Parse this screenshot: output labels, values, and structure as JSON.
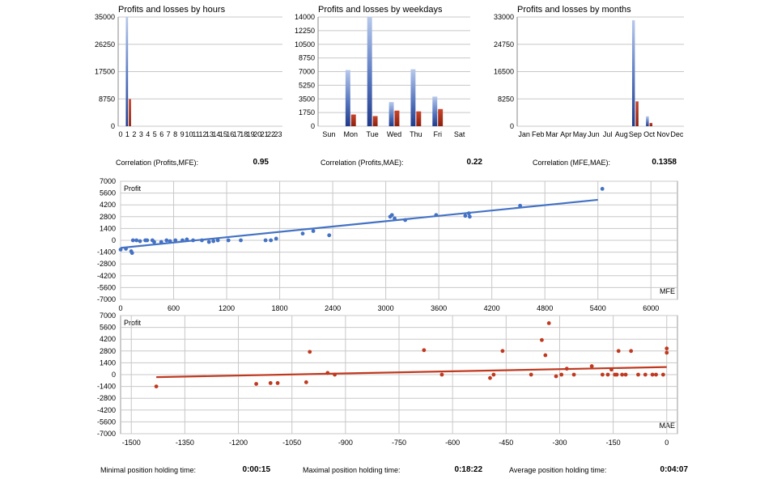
{
  "chart_data": [
    {
      "id": "hours",
      "type": "bar",
      "title": "Profits and losses by hours",
      "ylim": [
        0,
        35000
      ],
      "yticks": [
        "35000",
        "26250",
        "17500",
        "8750",
        "0"
      ],
      "categories": [
        "0",
        "1",
        "2",
        "3",
        "4",
        "5",
        "6",
        "7",
        "8",
        "9",
        "10",
        "11",
        "12",
        "13",
        "14",
        "15",
        "16",
        "17",
        "18",
        "19",
        "20",
        "21",
        "22",
        "23"
      ],
      "series": [
        {
          "name": "Profits",
          "values": [
            0,
            35000,
            0,
            0,
            0,
            0,
            0,
            0,
            0,
            0,
            0,
            0,
            0,
            0,
            0,
            0,
            0,
            0,
            0,
            0,
            0,
            0,
            0,
            0
          ]
        },
        {
          "name": "Losses",
          "values": [
            0,
            8700,
            0,
            0,
            0,
            0,
            0,
            0,
            0,
            0,
            0,
            0,
            0,
            0,
            0,
            0,
            0,
            0,
            0,
            0,
            0,
            0,
            0,
            0
          ]
        }
      ]
    },
    {
      "id": "weekdays",
      "type": "bar",
      "title": "Profits and losses by weekdays",
      "ylim": [
        0,
        14000
      ],
      "yticks": [
        "14000",
        "12250",
        "10500",
        "8750",
        "7000",
        "5250",
        "3500",
        "1750",
        "0"
      ],
      "categories": [
        "Sun",
        "Mon",
        "Tue",
        "Wed",
        "Thu",
        "Fri",
        "Sat"
      ],
      "series": [
        {
          "name": "Profits",
          "values": [
            0,
            7200,
            14000,
            3100,
            7300,
            3800,
            0
          ]
        },
        {
          "name": "Losses",
          "values": [
            0,
            1500,
            1300,
            2000,
            1900,
            2200,
            0
          ]
        }
      ]
    },
    {
      "id": "months",
      "type": "bar",
      "title": "Profits and losses by months",
      "ylim": [
        0,
        33000
      ],
      "yticks": [
        "33000",
        "24750",
        "16500",
        "8250",
        "0"
      ],
      "categories": [
        "Jan",
        "Feb",
        "Mar",
        "Apr",
        "May",
        "Jun",
        "Jul",
        "Aug",
        "Sep",
        "Oct",
        "Nov",
        "Dec"
      ],
      "series": [
        {
          "name": "Profits",
          "values": [
            0,
            0,
            0,
            0,
            0,
            0,
            0,
            0,
            32000,
            3000,
            0,
            0
          ]
        },
        {
          "name": "Losses",
          "values": [
            0,
            0,
            0,
            0,
            0,
            0,
            0,
            0,
            7500,
            1000,
            0,
            0
          ]
        }
      ]
    },
    {
      "id": "mfe",
      "type": "scatter",
      "ylabel": "Profit",
      "xlabel": "MFE",
      "xlim": [
        0,
        6300
      ],
      "ylim": [
        -7000,
        7000
      ],
      "xticks": [
        0,
        600,
        1200,
        1800,
        2400,
        3000,
        3600,
        4200,
        4800,
        5400,
        6000
      ],
      "yticks": [
        7000,
        5600,
        4200,
        2800,
        1400,
        0,
        -1400,
        -2800,
        -4200,
        -5600,
        -7000
      ],
      "trend": {
        "x": [
          0,
          5400
        ],
        "y": [
          -900,
          4800
        ]
      },
      "color": "#4472c4",
      "points": [
        [
          0,
          -1100
        ],
        [
          60,
          -1000
        ],
        [
          120,
          -1300
        ],
        [
          130,
          -1500
        ],
        [
          140,
          0
        ],
        [
          180,
          0
        ],
        [
          220,
          -100
        ],
        [
          280,
          0
        ],
        [
          300,
          0
        ],
        [
          360,
          0
        ],
        [
          380,
          -200
        ],
        [
          460,
          -200
        ],
        [
          520,
          0
        ],
        [
          560,
          -100
        ],
        [
          620,
          0
        ],
        [
          700,
          0
        ],
        [
          750,
          100
        ],
        [
          820,
          0
        ],
        [
          920,
          0
        ],
        [
          1000,
          -200
        ],
        [
          1050,
          -100
        ],
        [
          1100,
          0
        ],
        [
          1220,
          0
        ],
        [
          1360,
          0
        ],
        [
          1640,
          0
        ],
        [
          1700,
          0
        ],
        [
          1760,
          200
        ],
        [
          2060,
          800
        ],
        [
          2180,
          1100
        ],
        [
          2360,
          600
        ],
        [
          3050,
          2800
        ],
        [
          3070,
          3000
        ],
        [
          3100,
          2600
        ],
        [
          3220,
          2400
        ],
        [
          3570,
          3000
        ],
        [
          3900,
          2900
        ],
        [
          3940,
          3200
        ],
        [
          3950,
          2800
        ],
        [
          4520,
          4100
        ],
        [
          5450,
          6100
        ]
      ]
    },
    {
      "id": "mae",
      "type": "scatter",
      "ylabel": "Profit",
      "xlabel": "MAE",
      "xlim": [
        -1530,
        30
      ],
      "ylim": [
        -7000,
        7000
      ],
      "xticks": [
        -1500,
        -1350,
        -1200,
        -1050,
        -900,
        -750,
        -600,
        -450,
        -300,
        -150,
        0
      ],
      "yticks": [
        7000,
        5600,
        4200,
        2800,
        1400,
        0,
        -1400,
        -2800,
        -4200,
        -5600,
        -7000
      ],
      "trend": {
        "x": [
          -1430,
          0
        ],
        "y": [
          -300,
          900
        ]
      },
      "color": "#c0391f",
      "points": [
        [
          -1430,
          -1400
        ],
        [
          -1150,
          -1100
        ],
        [
          -1110,
          -1000
        ],
        [
          -1090,
          -1000
        ],
        [
          -1010,
          -900
        ],
        [
          -1000,
          2700
        ],
        [
          -950,
          200
        ],
        [
          -930,
          0
        ],
        [
          -680,
          2900
        ],
        [
          -630,
          0
        ],
        [
          -495,
          -400
        ],
        [
          -485,
          0
        ],
        [
          -460,
          2800
        ],
        [
          -380,
          0
        ],
        [
          -350,
          4100
        ],
        [
          -340,
          2300
        ],
        [
          -330,
          6100
        ],
        [
          -310,
          -200
        ],
        [
          -295,
          0
        ],
        [
          -280,
          700
        ],
        [
          -260,
          0
        ],
        [
          -210,
          1000
        ],
        [
          -180,
          0
        ],
        [
          -165,
          0
        ],
        [
          -155,
          600
        ],
        [
          -145,
          0
        ],
        [
          -140,
          0
        ],
        [
          -135,
          2800
        ],
        [
          -125,
          0
        ],
        [
          -115,
          0
        ],
        [
          -100,
          2800
        ],
        [
          -80,
          0
        ],
        [
          -60,
          0
        ],
        [
          -40,
          0
        ],
        [
          -30,
          0
        ],
        [
          -10,
          0
        ],
        [
          0,
          3100
        ],
        [
          0,
          2600
        ]
      ]
    }
  ],
  "correlations": [
    {
      "label": "Correlation (Profits,MFE):",
      "value": "0.95"
    },
    {
      "label": "Correlation (Profits,MAE):",
      "value": "0.22"
    },
    {
      "label": "Correlation (MFE,MAE):",
      "value": "0.1358"
    }
  ],
  "holding": [
    {
      "label": "Minimal position holding time:",
      "value": "0:00:15"
    },
    {
      "label": "Maximal position holding time:",
      "value": "0:18:22"
    },
    {
      "label": "Average position holding time:",
      "value": "0:04:07"
    }
  ],
  "colors": {
    "profit": "#2e4d9e",
    "loss": "#a32a14",
    "mfe": "#4472c4",
    "mae": "#c0391f",
    "grid": "#c8c8c8"
  }
}
